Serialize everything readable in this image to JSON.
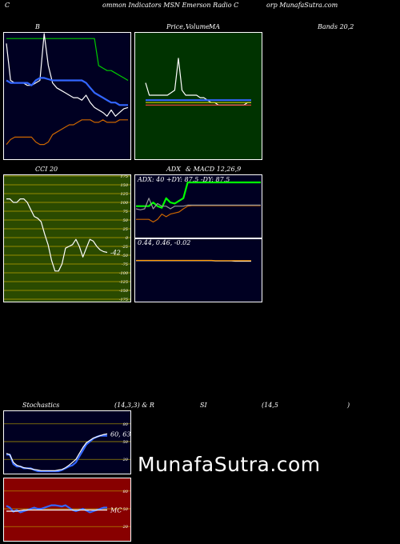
{
  "header": {
    "segments": [
      "C",
      "ommon Indicators MSN Emerson Radio C",
      "orp MunafaSutra.com"
    ]
  },
  "watermark": "MunafaSutra.com",
  "chart_data": [
    {
      "id": "bands",
      "type": "line",
      "title": "B",
      "background": "#000022",
      "x": [
        1,
        2,
        3,
        4,
        5,
        6,
        7,
        8,
        9,
        10,
        11,
        12,
        13,
        14,
        15,
        16,
        17,
        18,
        19,
        20,
        21,
        22,
        23,
        24,
        25,
        26,
        27,
        28,
        29,
        30
      ],
      "ylim": [
        0,
        100
      ],
      "series": [
        {
          "color": "#00cc00",
          "values": [
            96,
            96,
            96,
            96,
            96,
            96,
            96,
            96,
            96,
            96,
            96,
            96,
            96,
            96,
            96,
            96,
            96,
            96,
            96,
            96,
            96,
            96,
            74,
            72,
            70,
            70,
            68,
            66,
            64,
            62
          ]
        },
        {
          "color": "#ffffff",
          "values": [
            92,
            62,
            60,
            60,
            60,
            58,
            58,
            60,
            62,
            100,
            74,
            60,
            56,
            54,
            52,
            50,
            48,
            48,
            46,
            50,
            44,
            40,
            38,
            36,
            33,
            38,
            33,
            36,
            39,
            40
          ]
        },
        {
          "color": "#3366ff",
          "values": [
            62,
            60,
            60,
            60,
            60,
            60,
            58,
            62,
            64,
            64,
            63,
            62,
            62,
            62,
            62,
            62,
            62,
            62,
            62,
            60,
            56,
            52,
            50,
            48,
            46,
            44,
            44,
            42,
            42,
            42
          ]
        },
        {
          "color": "#cc6600",
          "values": [
            10,
            14,
            16,
            16,
            16,
            16,
            16,
            12,
            10,
            10,
            12,
            18,
            20,
            22,
            24,
            26,
            26,
            28,
            30,
            30,
            30,
            28,
            28,
            30,
            28,
            28,
            28,
            30,
            30,
            30
          ]
        }
      ]
    },
    {
      "id": "price-ma",
      "type": "line",
      "title": "Price, Volume, MA",
      "background": "#003300",
      "x": [
        1,
        2,
        3,
        4,
        5,
        6,
        7,
        8,
        9,
        10,
        11,
        12,
        13,
        14,
        15,
        16,
        17,
        18,
        19,
        20,
        21,
        22,
        23,
        24,
        25,
        26,
        27,
        28,
        29,
        30
      ],
      "ylim": [
        0,
        100
      ],
      "series": [
        {
          "color": "#ffffff",
          "values": [
            60,
            50,
            50,
            50,
            50,
            50,
            50,
            52,
            54,
            80,
            54,
            50,
            50,
            50,
            50,
            48,
            48,
            46,
            44,
            44,
            42,
            42,
            42,
            42,
            42,
            42,
            42,
            42,
            44,
            44
          ]
        },
        {
          "color": "#3366ff",
          "values": [
            46,
            46,
            46,
            46,
            46,
            46,
            46,
            46,
            46,
            46,
            46,
            46,
            46,
            46,
            46,
            46,
            46,
            46,
            46,
            46,
            46,
            46,
            46,
            46,
            46,
            46,
            46,
            46,
            46,
            46
          ]
        },
        {
          "color": "#ff4444",
          "values": [
            42,
            42,
            42,
            42,
            42,
            42,
            42,
            42,
            42,
            42,
            42,
            42,
            42,
            42,
            42,
            42,
            42,
            42,
            42,
            42,
            42,
            42,
            42,
            42,
            42,
            42,
            42,
            42,
            42,
            42
          ]
        },
        {
          "color": "#cccc00",
          "values": [
            44,
            44,
            44,
            44,
            44,
            44,
            44,
            44,
            44,
            44,
            44,
            44,
            44,
            44,
            44,
            44,
            44,
            44,
            44,
            44,
            44,
            44,
            44,
            44,
            44,
            44,
            44,
            44,
            44,
            44
          ]
        }
      ]
    },
    {
      "id": "cci",
      "type": "line",
      "title": "CCI 20",
      "background": "#2a4a00",
      "ylim": [
        -175,
        175
      ],
      "yticks": [
        175,
        150,
        125,
        100,
        75,
        50,
        25,
        0,
        -25,
        -50,
        -75,
        -100,
        -125,
        -150,
        -175
      ],
      "ytick_labels": [
        "175",
        "150",
        "125",
        "100",
        "75",
        "50",
        "25",
        "0",
        "-25",
        "-50",
        "-75",
        "-100",
        "-125",
        "-150",
        "-175"
      ],
      "value_label": "-42",
      "x": [
        1,
        2,
        3,
        4,
        5,
        6,
        7,
        8,
        9,
        10,
        11,
        12,
        13,
        14,
        15,
        16,
        17,
        18,
        19,
        20,
        21,
        22,
        23,
        24,
        25,
        26,
        27,
        28,
        29,
        30
      ],
      "series": [
        {
          "color": "#ffffff",
          "values": [
            110,
            110,
            100,
            100,
            110,
            110,
            100,
            80,
            60,
            55,
            45,
            10,
            -20,
            -65,
            -95,
            -95,
            -75,
            -30,
            -25,
            -20,
            -5,
            -25,
            -55,
            -30,
            -5,
            -10,
            -25,
            -35,
            -40,
            -42
          ]
        }
      ]
    },
    {
      "id": "adx",
      "type": "line",
      "title": "ADX",
      "label": "ADX: 40  +DY: 87.5 -DY: 87.5",
      "background": "#000022",
      "ylim": [
        0,
        100
      ],
      "x": [
        1,
        2,
        3,
        4,
        5,
        6,
        7,
        8,
        9,
        10,
        11,
        12,
        13,
        14,
        15,
        16,
        17,
        18,
        19,
        20,
        21,
        22,
        23,
        24,
        25,
        26,
        27,
        28,
        29,
        30
      ],
      "series": [
        {
          "color": "#00ff00",
          "values": [
            55,
            55,
            55,
            55,
            62,
            55,
            52,
            70,
            62,
            60,
            65,
            70,
            100,
            100,
            100,
            100,
            100,
            100,
            100,
            100,
            100,
            100,
            100,
            100,
            100,
            100,
            100,
            100,
            100,
            100
          ]
        },
        {
          "color": "#cc6600",
          "values": [
            30,
            30,
            30,
            30,
            25,
            30,
            40,
            35,
            40,
            42,
            44,
            50,
            55,
            56,
            56,
            56,
            56,
            56,
            56,
            56,
            56,
            56,
            56,
            56,
            56,
            56,
            56,
            56,
            56,
            56
          ]
        },
        {
          "color": "#999999",
          "values": [
            50,
            48,
            50,
            70,
            50,
            60,
            55,
            55,
            50,
            55,
            55,
            55,
            57,
            57,
            57,
            57,
            57,
            57,
            57,
            57,
            57,
            57,
            57,
            57,
            57,
            57,
            57,
            57,
            57,
            57
          ]
        }
      ]
    },
    {
      "id": "macd",
      "type": "line",
      "title": "& MACD 12,26,9",
      "label": "0.44,  0.46,  -0.02",
      "background": "#000022",
      "ylim": [
        -1,
        1
      ],
      "x": [
        1,
        2,
        3,
        4,
        5,
        6,
        7,
        8,
        9,
        10,
        11,
        12,
        13,
        14,
        15,
        16,
        17,
        18,
        19,
        20,
        21,
        22,
        23,
        24,
        25,
        26,
        27,
        28,
        29,
        30
      ],
      "series": [
        {
          "color": "#ffffff",
          "values": [
            0.46,
            0.46,
            0.46,
            0.46,
            0.46,
            0.46,
            0.46,
            0.46,
            0.46,
            0.46,
            0.46,
            0.46,
            0.46,
            0.46,
            0.46,
            0.46,
            0.46,
            0.46,
            0.46,
            0.46,
            0.45,
            0.45,
            0.45,
            0.45,
            0.45,
            0.44,
            0.44,
            0.44,
            0.44,
            0.44
          ]
        },
        {
          "color": "#ff9900",
          "values": [
            0.47,
            0.47,
            0.47,
            0.47,
            0.47,
            0.47,
            0.47,
            0.47,
            0.47,
            0.47,
            0.47,
            0.47,
            0.47,
            0.47,
            0.47,
            0.47,
            0.47,
            0.47,
            0.47,
            0.47,
            0.46,
            0.46,
            0.46,
            0.46,
            0.46,
            0.46,
            0.46,
            0.46,
            0.46,
            0.46
          ]
        }
      ]
    },
    {
      "id": "stochastics",
      "type": "line",
      "title": "Stochastics",
      "params": "(14,3,3) & R",
      "background": "#000022",
      "ylim": [
        0,
        100
      ],
      "yticks": [
        80,
        50,
        20
      ],
      "ytick_labels": [
        "80",
        "50",
        "20"
      ],
      "value_label": "60, 63",
      "x": [
        1,
        2,
        3,
        4,
        5,
        6,
        7,
        8,
        9,
        10,
        11,
        12,
        13,
        14,
        15,
        16,
        17,
        18,
        19,
        20,
        21,
        22,
        23,
        24,
        25,
        26,
        27,
        28,
        29,
        30
      ],
      "series": [
        {
          "color": "#3366ff",
          "values": [
            28,
            28,
            12,
            8,
            8,
            5,
            5,
            5,
            2,
            0,
            0,
            0,
            0,
            0,
            0,
            0,
            2,
            5,
            8,
            10,
            15,
            25,
            35,
            45,
            50,
            55,
            58,
            60,
            60,
            60
          ]
        },
        {
          "color": "#ffffff",
          "values": [
            30,
            28,
            15,
            10,
            8,
            6,
            5,
            4,
            3,
            2,
            1,
            1,
            1,
            1,
            1,
            2,
            3,
            6,
            10,
            15,
            20,
            30,
            40,
            48,
            52,
            56,
            58,
            60,
            62,
            63
          ]
        }
      ]
    },
    {
      "id": "rsi",
      "type": "line",
      "title": "SI",
      "params": "(14,5",
      "params_close": ")",
      "background": "#880000",
      "ylim": [
        0,
        100
      ],
      "yticks": [
        80,
        50,
        20
      ],
      "ytick_labels": [
        "80",
        "50",
        "20"
      ],
      "value_label": "MC",
      "x": [
        1,
        2,
        3,
        4,
        5,
        6,
        7,
        8,
        9,
        10,
        11,
        12,
        13,
        14,
        15,
        16,
        17,
        18,
        19,
        20,
        21,
        22,
        23,
        24,
        25,
        26,
        27,
        28,
        29,
        30
      ],
      "series": [
        {
          "color": "#3366ff",
          "values": [
            55,
            52,
            45,
            48,
            44,
            46,
            48,
            50,
            52,
            50,
            50,
            52,
            54,
            56,
            56,
            55,
            54,
            56,
            52,
            48,
            46,
            48,
            50,
            47,
            44,
            46,
            48,
            50,
            52,
            52
          ]
        },
        {
          "color": "#ffffff",
          "values": [
            46,
            46,
            46,
            46,
            47,
            48,
            48,
            48,
            48,
            48,
            48,
            48,
            48,
            48,
            48,
            48,
            48,
            48,
            48,
            48,
            48,
            48,
            48,
            48,
            48,
            48,
            48,
            48,
            48,
            48
          ]
        }
      ]
    }
  ],
  "labels": {
    "bands_right": "Bands 20,2",
    "price_overlay": "Volume",
    "price_title_a": "Price,",
    "price_title_b": "MA",
    "adx_title": "ADX",
    "macd_title": "& MACD 12,26,9"
  }
}
